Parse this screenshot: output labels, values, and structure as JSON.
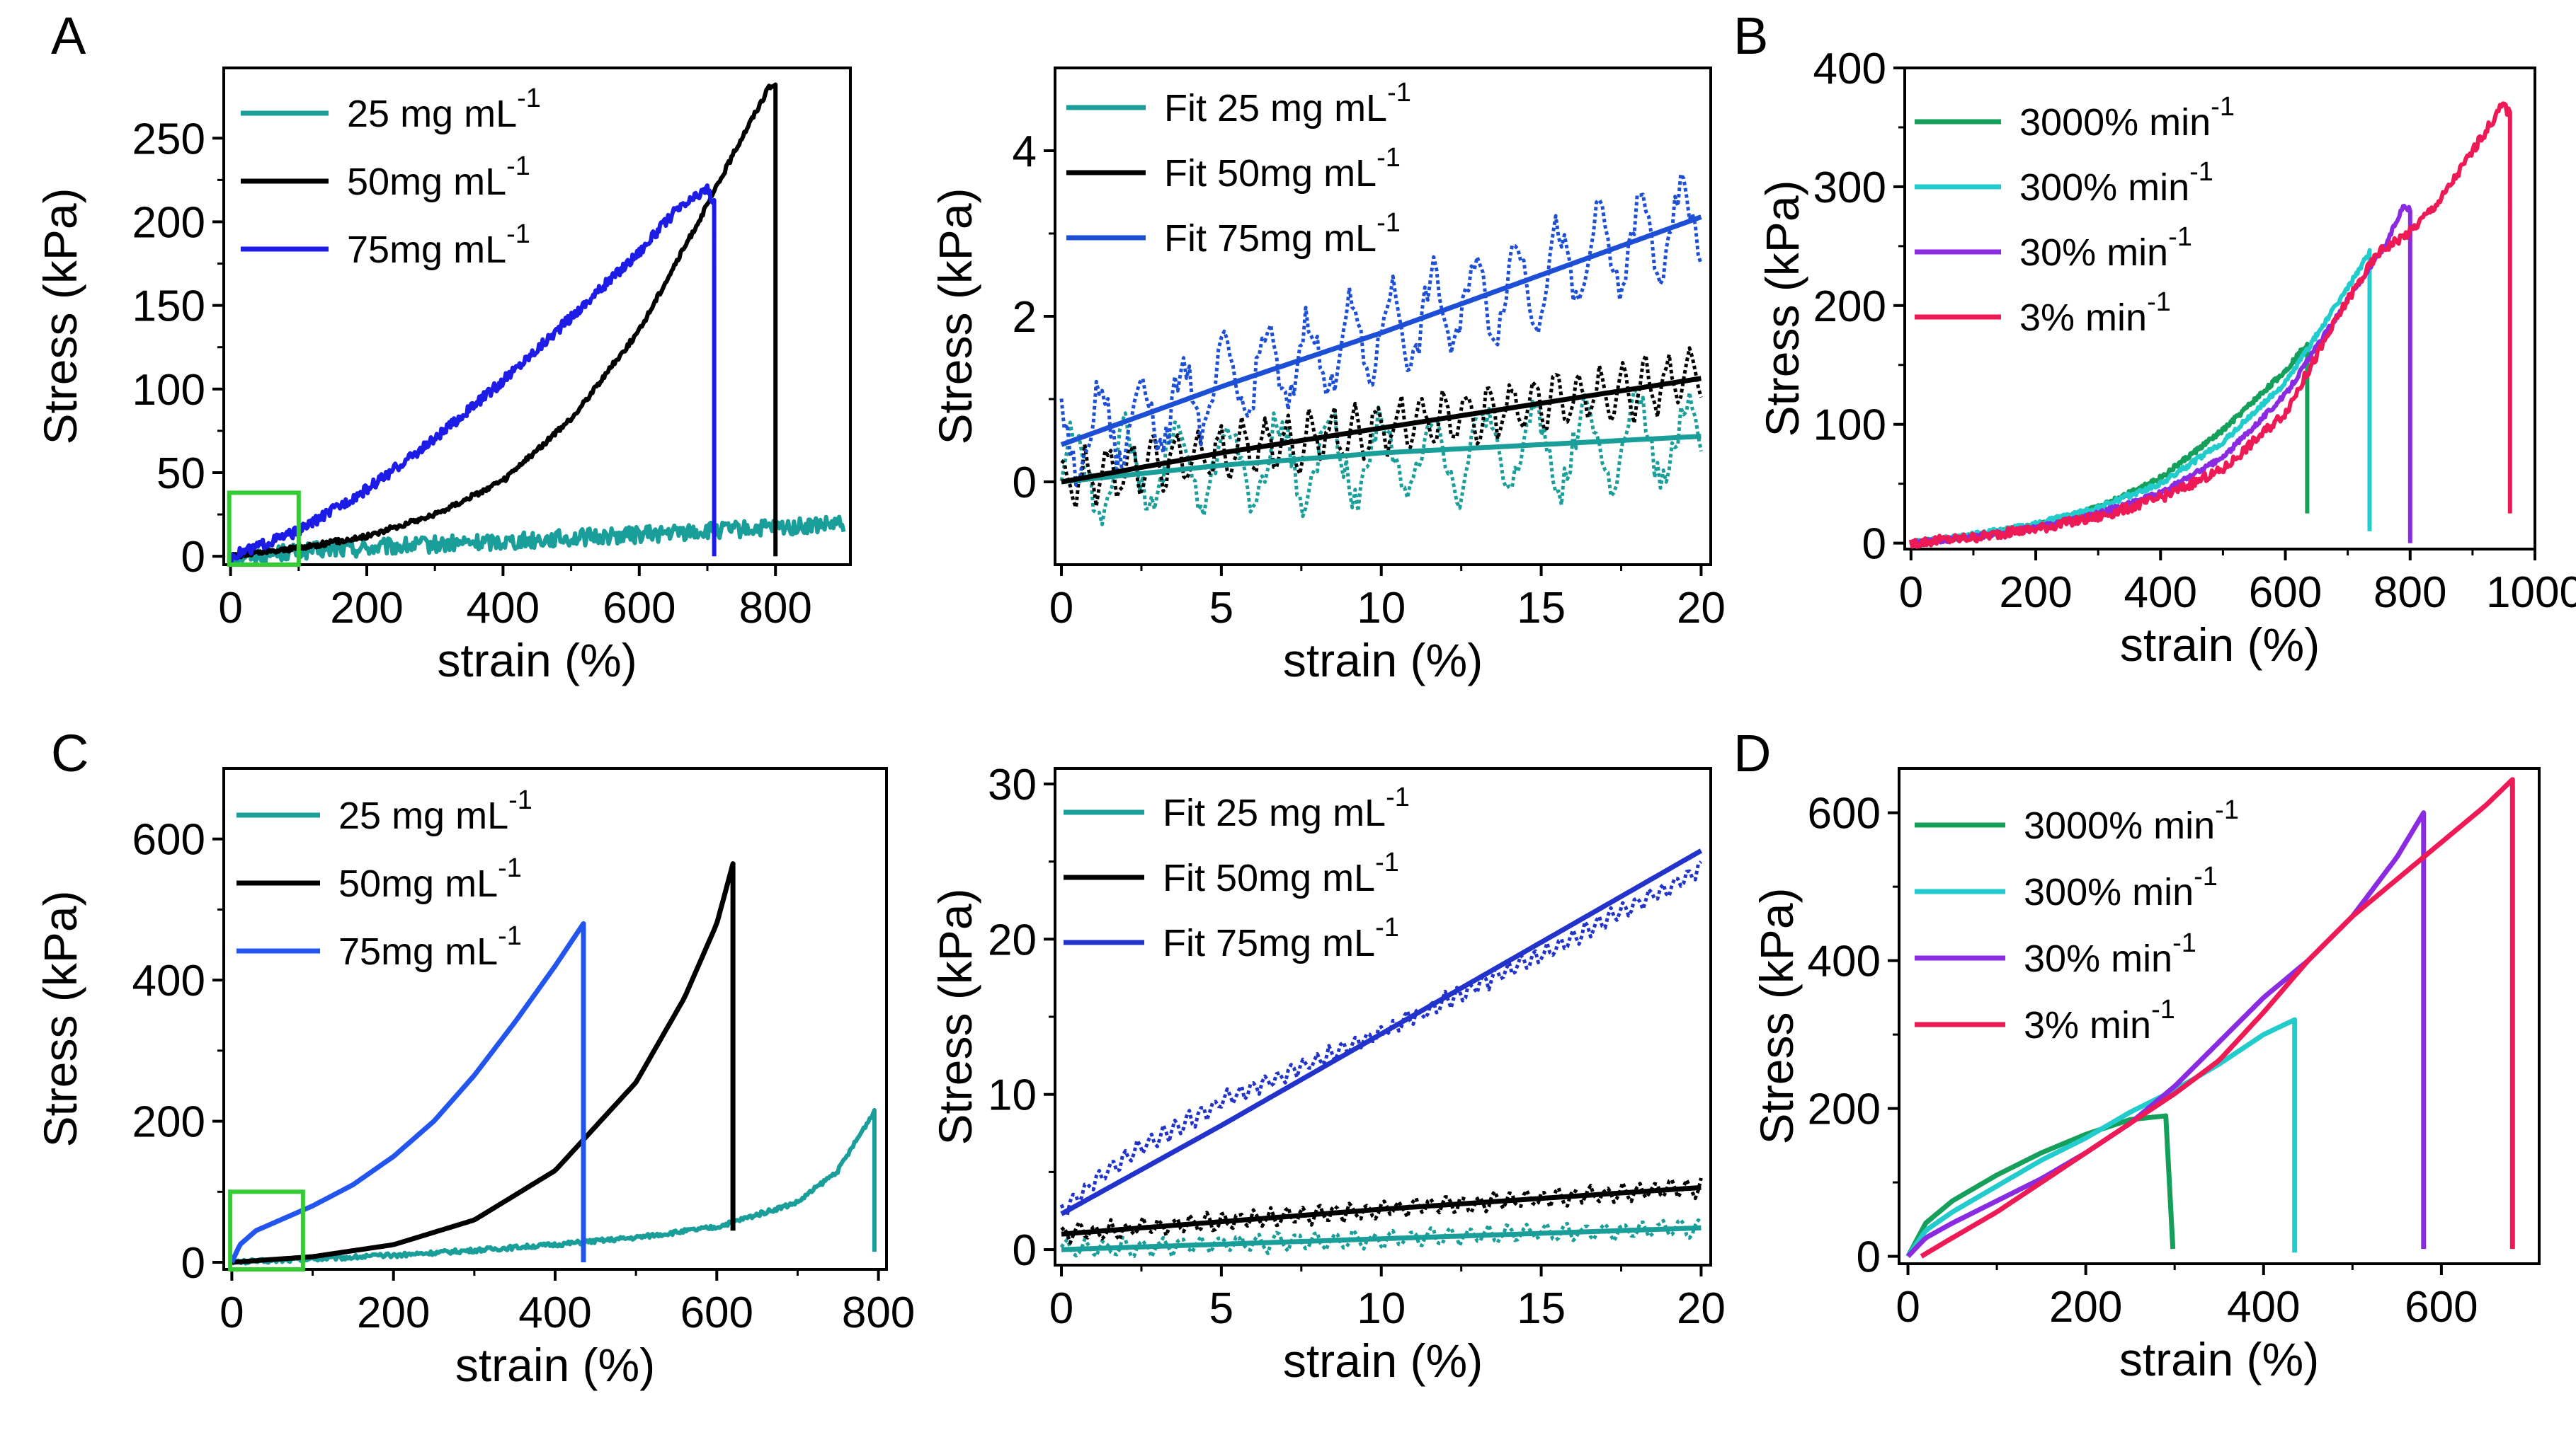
{
  "figure": {
    "panel_letters": [
      "A",
      "B",
      "C",
      "D"
    ]
  },
  "chart_data": [
    {
      "id": "A_full",
      "panel": "A",
      "type": "line",
      "xlabel": "strain (%)",
      "ylabel": "Stress (kPa)",
      "xlim": [
        -10,
        910
      ],
      "ylim": [
        -5,
        292
      ],
      "xticks": [
        0,
        200,
        400,
        600,
        800
      ],
      "yticks": [
        0,
        50,
        100,
        150,
        200,
        250
      ],
      "highlight_box": {
        "x0": -2,
        "x1": 100,
        "y0": -5,
        "y1": 38,
        "color": "#33cc33"
      },
      "legend": [
        {
          "label": "25 mg mL",
          "sup": "-1",
          "color": "#1a9e9a"
        },
        {
          "label": "50mg mL",
          "sup": "-1",
          "color": "#000000"
        },
        {
          "label": "75mg mL",
          "sup": "-1",
          "color": "#1c1ce6"
        }
      ],
      "series": [
        {
          "name": "25 mg mL-1",
          "color": "#1a9e9a",
          "noise": 5,
          "drop_to": null,
          "x": [
            0,
            100,
            200,
            300,
            400,
            500,
            600,
            700,
            800,
            900
          ],
          "y": [
            0,
            3,
            5,
            7,
            9,
            11,
            13,
            15,
            17,
            19
          ]
        },
        {
          "name": "50mg mL-1",
          "color": "#000000",
          "noise": 1.5,
          "drop_to": 0,
          "x": [
            0,
            100,
            200,
            300,
            400,
            500,
            600,
            700,
            750,
            790,
            800
          ],
          "y": [
            0,
            5,
            12,
            25,
            45,
            82,
            135,
            210,
            250,
            280,
            282
          ]
        },
        {
          "name": "75mg mL-1",
          "color": "#1c1ce6",
          "noise": 3,
          "drop_to": 0,
          "x": [
            0,
            100,
            200,
            300,
            400,
            500,
            600,
            650,
            700,
            710
          ],
          "y": [
            0,
            15,
            40,
            70,
            105,
            143,
            182,
            205,
            220,
            210
          ]
        }
      ]
    },
    {
      "id": "A_zoom",
      "panel": "A",
      "type": "line",
      "xlabel": "strain (%)",
      "ylabel": "Stress (kPa)",
      "xlim": [
        -0.2,
        20.3
      ],
      "ylim": [
        -1,
        5
      ],
      "xticks": [
        0,
        5,
        10,
        15,
        20
      ],
      "yticks": [
        0,
        2,
        4
      ],
      "legend": [
        {
          "label": "Fit 25 mg mL",
          "sup": "-1",
          "color": "#1a9e9a"
        },
        {
          "label": "Fit 50mg mL",
          "sup": "-1",
          "color": "#000000"
        },
        {
          "label": "Fit 75mg mL",
          "sup": "-1",
          "color": "#1c4fd6"
        }
      ],
      "series": [
        {
          "name": "25 mg mL-1 data",
          "color": "#1a9e9a",
          "dotted": true,
          "wave_amp": 0.5,
          "wave_period": 1.6,
          "x": [
            0,
            5,
            10,
            15,
            20
          ],
          "y": [
            0.1,
            0.2,
            0.3,
            0.4,
            0.5
          ]
        },
        {
          "name": "50mg mL-1 data",
          "color": "#000000",
          "dotted": true,
          "wave_amp": 0.3,
          "wave_period": 0.7,
          "x": [
            0,
            5,
            10,
            15,
            20
          ],
          "y": [
            0.0,
            0.35,
            0.65,
            0.95,
            1.25
          ]
        },
        {
          "name": "75mg mL-1 data",
          "color": "#1c4fd6",
          "dotted": true,
          "wave_amp": 0.5,
          "wave_period": 1.3,
          "x": [
            0,
            5,
            10,
            15,
            20
          ],
          "y": [
            0.45,
            1.15,
            1.8,
            2.5,
            3.15
          ]
        },
        {
          "name": "Fit 25 mg mL-1",
          "color": "#1a9e9a",
          "x": [
            0,
            5,
            10,
            15,
            20
          ],
          "y": [
            0.0,
            0.2,
            0.35,
            0.45,
            0.55
          ]
        },
        {
          "name": "Fit 50mg mL-1",
          "color": "#000000",
          "x": [
            0,
            5,
            10,
            15,
            20
          ],
          "y": [
            0.0,
            0.35,
            0.65,
            0.95,
            1.25
          ]
        },
        {
          "name": "Fit 75mg mL-1",
          "color": "#1c4fd6",
          "x": [
            0,
            5,
            10,
            15,
            20
          ],
          "y": [
            0.45,
            1.15,
            1.8,
            2.5,
            3.2
          ]
        }
      ]
    },
    {
      "id": "B",
      "panel": "B",
      "type": "line",
      "xlabel": "strain (%)",
      "ylabel": "Stress (kPa)",
      "xlim": [
        -10,
        1000
      ],
      "ylim": [
        -5,
        400
      ],
      "xticks": [
        0,
        200,
        400,
        600,
        800,
        1000
      ],
      "xticklabels": [
        "0",
        "200",
        "400",
        "600",
        "800",
        "1000"
      ],
      "yticks": [
        0,
        100,
        200,
        300,
        400
      ],
      "legend": [
        {
          "label": "3000% min",
          "sup": "-1",
          "color": "#14a05a"
        },
        {
          "label": "300% min",
          "sup": "-1",
          "color": "#22cccc"
        },
        {
          "label": "30% min",
          "sup": "-1",
          "color": "#8a2be2"
        },
        {
          "label": "3% min",
          "sup": "-1",
          "color": "#ee1a55"
        }
      ],
      "series": [
        {
          "name": "3000% min-1",
          "color": "#14a05a",
          "noise": 2,
          "drop_to": 25,
          "x": [
            0,
            100,
            200,
            300,
            400,
            500,
            600,
            635
          ],
          "y": [
            0,
            6,
            15,
            30,
            55,
            95,
            145,
            168
          ]
        },
        {
          "name": "300% min-1",
          "color": "#22cccc",
          "noise": 2,
          "drop_to": 10,
          "x": [
            0,
            100,
            200,
            300,
            400,
            500,
            600,
            700,
            735
          ],
          "y": [
            0,
            7,
            16,
            30,
            50,
            85,
            135,
            215,
            245
          ]
        },
        {
          "name": "30% min-1",
          "color": "#8a2be2",
          "noise": 2,
          "drop_to": 0,
          "x": [
            0,
            100,
            200,
            300,
            400,
            500,
            600,
            700,
            760,
            790,
            800
          ],
          "y": [
            0,
            5,
            13,
            25,
            42,
            72,
            125,
            205,
            250,
            285,
            280
          ]
        },
        {
          "name": "3% min-1",
          "color": "#ee1a55",
          "noise": 4,
          "drop_to": 25,
          "x": [
            0,
            100,
            200,
            300,
            400,
            500,
            600,
            700,
            750,
            800,
            850,
            900,
            950,
            960
          ],
          "y": [
            0,
            5,
            12,
            22,
            38,
            62,
            110,
            205,
            245,
            262,
            290,
            330,
            370,
            360
          ]
        }
      ]
    },
    {
      "id": "C_full",
      "panel": "C",
      "type": "line",
      "xlabel": "strain (%)",
      "ylabel": "Stress (kPa)",
      "xlim": [
        -10,
        810
      ],
      "ylim": [
        -10,
        700
      ],
      "xticks": [
        0,
        200,
        400,
        600,
        800
      ],
      "yticks": [
        0,
        200,
        400,
        600
      ],
      "highlight_box": {
        "x0": -2,
        "x1": 88,
        "y0": -10,
        "y1": 100,
        "color": "#33cc33"
      },
      "legend": [
        {
          "label": "25 mg mL",
          "sup": "-1",
          "color": "#1a9e9a"
        },
        {
          "label": "50mg mL",
          "sup": "-1",
          "color": "#000000"
        },
        {
          "label": "75mg mL",
          "sup": "-1",
          "color": "#2255ee"
        }
      ],
      "series": [
        {
          "name": "25 mg mL-1",
          "color": "#1a9e9a",
          "noise": 3,
          "drop_to": 15,
          "x": [
            0,
            100,
            200,
            300,
            400,
            500,
            600,
            700,
            750,
            790,
            795
          ],
          "y": [
            0,
            5,
            10,
            17,
            25,
            35,
            50,
            85,
            130,
            205,
            215
          ]
        },
        {
          "name": "50mg mL-1",
          "color": "#000000",
          "noise": 0,
          "drop_to": 45,
          "x": [
            0,
            100,
            200,
            300,
            400,
            500,
            560,
            600,
            620
          ],
          "y": [
            0,
            8,
            25,
            60,
            130,
            255,
            375,
            480,
            565
          ]
        },
        {
          "name": "75mg mL-1",
          "color": "#2255ee",
          "noise": 0,
          "drop_to": 0,
          "x": [
            0,
            10,
            30,
            60,
            100,
            150,
            200,
            250,
            300,
            350,
            400,
            435
          ],
          "y": [
            0,
            25,
            45,
            60,
            80,
            110,
            150,
            200,
            265,
            340,
            420,
            480
          ]
        }
      ]
    },
    {
      "id": "C_zoom",
      "panel": "C",
      "type": "line",
      "xlabel": "strain (%)",
      "ylabel": "Stress (kPa)",
      "xlim": [
        -0.2,
        20.3
      ],
      "ylim": [
        -1,
        31
      ],
      "xticks": [
        0,
        5,
        10,
        15,
        20
      ],
      "yticks": [
        0,
        10,
        20,
        30
      ],
      "legend": [
        {
          "label": "Fit 25 mg mL",
          "sup": "-1",
          "color": "#1a9e9a"
        },
        {
          "label": "Fit 50mg mL",
          "sup": "-1",
          "color": "#000000"
        },
        {
          "label": "Fit 75mg mL",
          "sup": "-1",
          "color": "#2233cc"
        }
      ],
      "series": [
        {
          "name": "25 mg mL-1 data",
          "color": "#1a9e9a",
          "dotted": true,
          "wave_amp": 0.5,
          "wave_period": 0.6,
          "x": [
            0,
            5,
            10,
            15,
            20
          ],
          "y": [
            0.0,
            0.35,
            0.7,
            1.05,
            1.4
          ]
        },
        {
          "name": "50mg mL-1 data",
          "color": "#000000",
          "dotted": true,
          "wave_amp": 0.5,
          "wave_period": 0.5,
          "x": [
            0,
            5,
            10,
            15,
            20
          ],
          "y": [
            1.0,
            1.8,
            2.6,
            3.3,
            4.0
          ]
        },
        {
          "name": "75mg mL-1 data",
          "color": "#2233cc",
          "dotted": true,
          "wave_amp": 0.5,
          "wave_period": 0.4,
          "x": [
            0,
            2,
            5,
            10,
            15,
            20
          ],
          "y": [
            2.5,
            6.0,
            9.5,
            14.0,
            19.0,
            24.5
          ]
        },
        {
          "name": "Fit 25 mg mL-1",
          "color": "#1a9e9a",
          "x": [
            0,
            5,
            10,
            15,
            20
          ],
          "y": [
            0.0,
            0.35,
            0.7,
            1.05,
            1.4
          ]
        },
        {
          "name": "Fit 50mg mL-1",
          "color": "#000000",
          "x": [
            0,
            5,
            10,
            15,
            20
          ],
          "y": [
            1.0,
            1.8,
            2.6,
            3.3,
            4.0
          ]
        },
        {
          "name": "Fit 75mg mL-1",
          "color": "#2233cc",
          "x": [
            0,
            5,
            10,
            15,
            20
          ],
          "y": [
            2.3,
            8.0,
            13.9,
            19.8,
            25.7
          ]
        }
      ]
    },
    {
      "id": "D",
      "panel": "D",
      "type": "line",
      "xlabel": "strain (%)",
      "ylabel": "Stress (kPa)",
      "xlim": [
        -10,
        710
      ],
      "ylim": [
        -10,
        660
      ],
      "xticks": [
        0,
        200,
        400,
        600
      ],
      "yticks": [
        0,
        200,
        400,
        600
      ],
      "legend": [
        {
          "label": "3000% min",
          "sup": "-1",
          "color": "#14a05a"
        },
        {
          "label": "300% min",
          "sup": "-1",
          "color": "#22cccc"
        },
        {
          "label": "30% min",
          "sup": "-1",
          "color": "#8a2be2"
        },
        {
          "label": "3% min",
          "sup": "-1",
          "color": "#ee1a55"
        }
      ],
      "series": [
        {
          "name": "3000% min-1",
          "color": "#14a05a",
          "noise": 0,
          "drop_to": 10,
          "drop_dx": 8,
          "x": [
            0,
            20,
            50,
            100,
            150,
            200,
            250,
            290
          ],
          "y": [
            0,
            45,
            75,
            110,
            140,
            165,
            185,
            190
          ]
        },
        {
          "name": "300% min-1",
          "color": "#22cccc",
          "noise": 0,
          "drop_to": 5,
          "x": [
            0,
            20,
            50,
            100,
            150,
            200,
            250,
            300,
            350,
            400,
            435
          ],
          "y": [
            0,
            35,
            60,
            95,
            130,
            160,
            195,
            225,
            260,
            300,
            320
          ]
        },
        {
          "name": "30% min-1",
          "color": "#8a2be2",
          "noise": 0,
          "drop_to": 10,
          "x": [
            0,
            20,
            50,
            100,
            150,
            200,
            250,
            300,
            350,
            400,
            450,
            500,
            550,
            580
          ],
          "y": [
            0,
            25,
            45,
            75,
            105,
            140,
            180,
            230,
            290,
            350,
            400,
            460,
            540,
            600
          ]
        },
        {
          "name": "3% min-1",
          "color": "#ee1a55",
          "noise": 0,
          "drop_to": 10,
          "x": [
            15,
            50,
            100,
            150,
            200,
            250,
            300,
            350,
            400,
            450,
            500,
            550,
            600,
            650,
            680
          ],
          "y": [
            0,
            25,
            60,
            100,
            140,
            180,
            220,
            265,
            330,
            400,
            460,
            510,
            560,
            610,
            645
          ]
        }
      ]
    }
  ]
}
